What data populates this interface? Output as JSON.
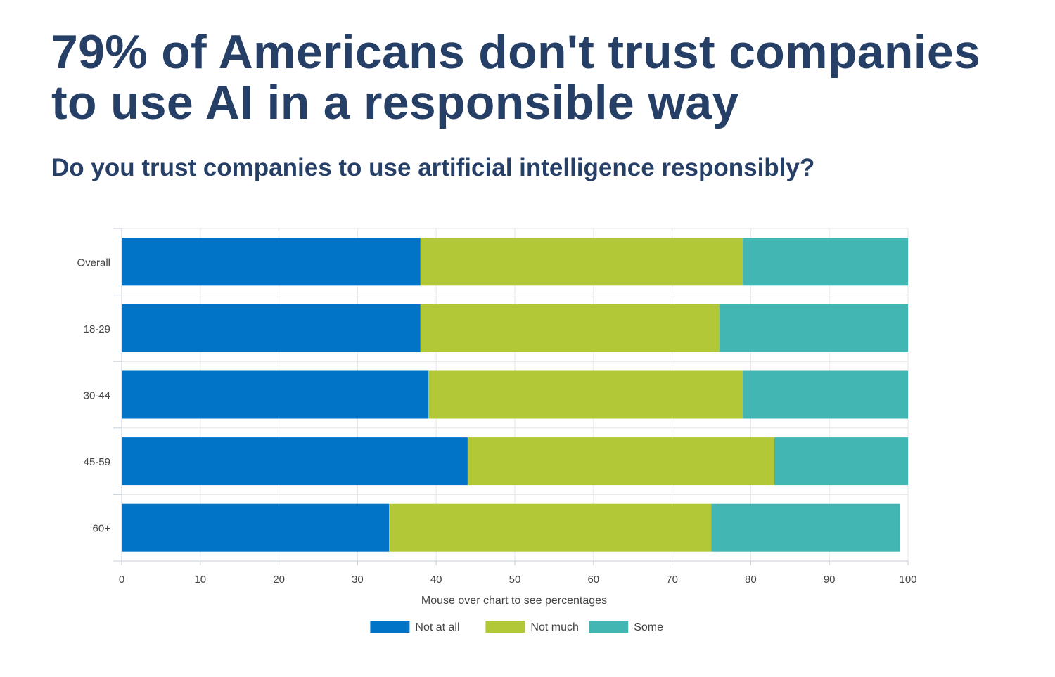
{
  "title": "79% of Americans don't trust companies to use AI in a responsible way",
  "subtitle": "Do you trust companies to use artificial intelligence responsibly?",
  "chart_data": {
    "type": "bar",
    "orientation": "horizontal",
    "stacked": true,
    "categories": [
      "Overall",
      "18-29",
      "30-44",
      "45-59",
      "60+"
    ],
    "series": [
      {
        "name": "Not at all",
        "color": "#0274c8",
        "values": [
          38,
          38,
          39,
          44,
          34
        ]
      },
      {
        "name": "Not much",
        "color": "#b2c836",
        "values": [
          41,
          38,
          40,
          39,
          41
        ]
      },
      {
        "name": "Some",
        "color": "#42b6b2",
        "values": [
          21,
          24,
          21,
          17,
          24
        ]
      }
    ],
    "xlim": [
      0,
      100
    ],
    "xticks": [
      0,
      10,
      20,
      30,
      40,
      50,
      60,
      70,
      80,
      90,
      100
    ],
    "xlabel": "Mouse over chart to see percentages",
    "grid": true,
    "legend_position": "bottom"
  }
}
